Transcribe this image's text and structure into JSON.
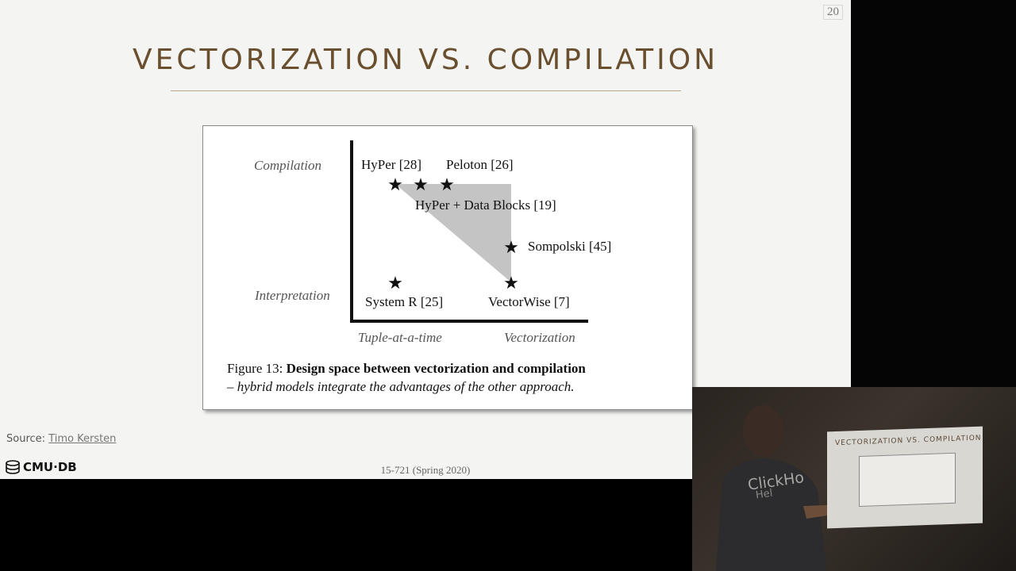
{
  "slide": {
    "page_number": "20",
    "title": "VECTORIZATION VS. COMPILATION",
    "source_label": "Source:",
    "source_author": "Timo Kersten",
    "logo_text": "CMU·DB",
    "course": "15-721 (Spring 2020)"
  },
  "figure": {
    "y_axis_labels": {
      "top": "Compilation",
      "bottom": "Interpretation"
    },
    "x_axis_labels": {
      "left": "Tuple-at-a-time",
      "right": "Vectorization"
    },
    "systems": [
      {
        "label": "HyPer [28]"
      },
      {
        "label": "Peloton [26]"
      },
      {
        "label": "HyPer + Data Blocks [19]"
      },
      {
        "label": "Sompolski [45]"
      },
      {
        "label": "System R [25]"
      },
      {
        "label": "VectorWise [7]"
      }
    ],
    "caption": {
      "prefix": "Figure 13:",
      "bold": "Design space between vectorization and compilation",
      "italic": "– hybrid models integrate the advantages of the other approach."
    }
  },
  "webcam": {
    "screen_title": "VECTORIZATION VS. COMPILATION",
    "shirt_text": "ClickHo",
    "shirt_text2": "Hel"
  }
}
